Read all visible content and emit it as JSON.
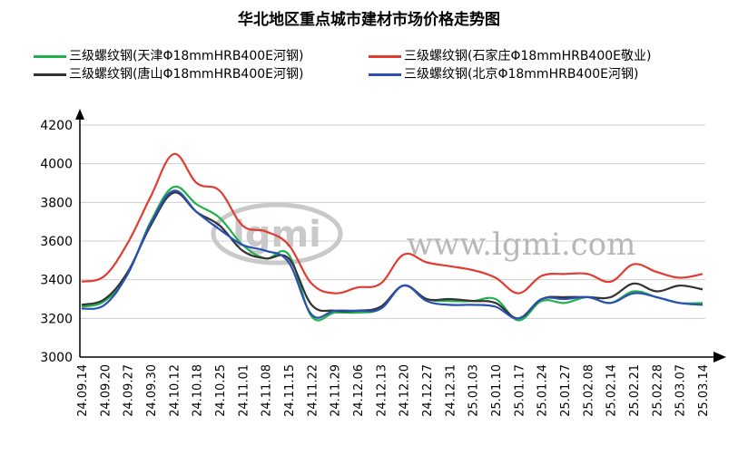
{
  "chart_data": {
    "type": "line",
    "title": "华北地区重点城市建材市场价格走势图",
    "watermark": {
      "logo": "lgmi",
      "text": "www.lgmi.com"
    },
    "xlabel": "",
    "ylabel": "",
    "ylim": [
      3000,
      4200
    ],
    "yticks": [
      3000,
      3200,
      3400,
      3600,
      3800,
      4000,
      4200
    ],
    "grid": true,
    "legend_position": "top",
    "categories": [
      "24.09.14",
      "24.09.20",
      "24.09.27",
      "24.09.30",
      "24.10.12",
      "24.10.18",
      "24.10.25",
      "24.11.01",
      "24.11.08",
      "24.11.15",
      "24.11.22",
      "24.11.29",
      "24.12.06",
      "24.12.13",
      "24.12.20",
      "24.12.27",
      "24.12.31",
      "25.01.03",
      "25.01.10",
      "25.01.17",
      "25.01.24",
      "25.01.27",
      "25.02.08",
      "25.02.14",
      "25.02.21",
      "25.02.28",
      "25.03.07",
      "25.03.14"
    ],
    "series": [
      {
        "name": "三级螺纹钢(天津Φ18mmHRB400E河钢)",
        "color": "#22b04b",
        "values": [
          3260,
          3290,
          3430,
          3700,
          3880,
          3790,
          3720,
          3580,
          3510,
          3530,
          3210,
          3230,
          3230,
          3250,
          3370,
          3300,
          3290,
          3290,
          3300,
          3190,
          3290,
          3280,
          3310,
          3280,
          3340,
          3310,
          3280,
          3280
        ]
      },
      {
        "name": "三级螺纹钢(石家庄Φ18mmHRB400E敬业)",
        "color": "#e03c31",
        "values": [
          3390,
          3420,
          3590,
          3830,
          4050,
          3900,
          3860,
          3680,
          3650,
          3580,
          3380,
          3330,
          3360,
          3380,
          3530,
          3490,
          3470,
          3450,
          3410,
          3330,
          3420,
          3430,
          3430,
          3390,
          3480,
          3440,
          3410,
          3430
        ]
      },
      {
        "name": "三级螺纹钢(唐山Φ18mmHRB400E河钢)",
        "color": "#333333",
        "values": [
          3270,
          3300,
          3440,
          3680,
          3850,
          3750,
          3680,
          3550,
          3510,
          3510,
          3270,
          3240,
          3240,
          3260,
          3370,
          3300,
          3300,
          3290,
          3280,
          3200,
          3300,
          3310,
          3310,
          3310,
          3380,
          3340,
          3370,
          3350
        ]
      },
      {
        "name": "三级螺纹钢(北京Φ18mmHRB400E河钢)",
        "color": "#2a4fb5",
        "values": [
          3250,
          3270,
          3430,
          3690,
          3860,
          3750,
          3660,
          3580,
          3550,
          3490,
          3220,
          3240,
          3240,
          3250,
          3370,
          3290,
          3270,
          3270,
          3260,
          3200,
          3300,
          3300,
          3310,
          3280,
          3330,
          3310,
          3280,
          3270
        ]
      }
    ]
  }
}
